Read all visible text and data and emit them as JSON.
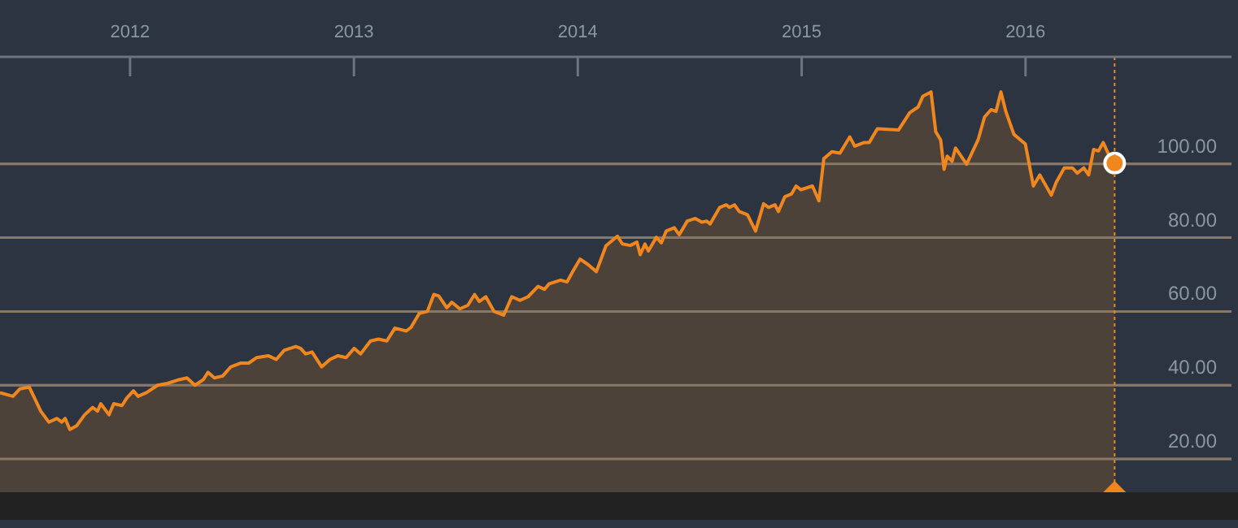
{
  "chart_data": {
    "type": "area",
    "x": [
      2011.419,
      2011.477,
      2011.507,
      2011.55,
      2011.601,
      2011.637,
      2011.673,
      2011.695,
      2011.71,
      2011.731,
      2011.761,
      2011.797,
      2011.833,
      2011.855,
      2011.869,
      2011.906,
      2011.927,
      2011.964,
      2011.985,
      2012.015,
      2012.036,
      2012.073,
      2012.123,
      2012.167,
      2012.218,
      2012.254,
      2012.29,
      2012.327,
      2012.348,
      2012.377,
      2012.414,
      2012.45,
      2012.493,
      2012.53,
      2012.566,
      2012.617,
      2012.653,
      2012.689,
      2012.74,
      2012.762,
      2012.784,
      2012.813,
      2012.856,
      2012.893,
      2012.929,
      2012.965,
      2013.001,
      2013.03,
      2013.074,
      2013.11,
      2013.147,
      2013.183,
      2013.234,
      2013.255,
      2013.292,
      2013.328,
      2013.357,
      2013.379,
      2013.415,
      2013.437,
      2013.473,
      2013.509,
      2013.539,
      2013.56,
      2013.589,
      2013.626,
      2013.669,
      2013.705,
      2013.742,
      2013.778,
      2013.822,
      2013.851,
      2013.872,
      2013.923,
      2013.952,
      2013.981,
      2014.01,
      2014.046,
      2014.083,
      2014.126,
      2014.177,
      2014.199,
      2014.235,
      2014.264,
      2014.279,
      2014.3,
      2014.315,
      2014.351,
      2014.373,
      2014.395,
      2014.431,
      2014.453,
      2014.489,
      2014.525,
      2014.554,
      2014.576,
      2014.591,
      2014.634,
      2014.663,
      2014.678,
      2014.7,
      2014.721,
      2014.758,
      2014.794,
      2014.83,
      2014.852,
      2014.881,
      2014.896,
      2014.925,
      2014.954,
      2014.975,
      2014.997,
      2015.048,
      2015.077,
      2015.099,
      2015.135,
      2015.171,
      2015.215,
      2015.237,
      2015.28,
      2015.302,
      2015.338,
      2015.433,
      2015.483,
      2015.52,
      2015.541,
      2015.578,
      2015.599,
      2015.621,
      2015.636,
      2015.65,
      2015.672,
      2015.687,
      2015.737,
      2015.788,
      2015.817,
      2015.846,
      2015.868,
      2015.89,
      2015.912,
      2015.948,
      2015.999,
      2016.035,
      2016.064,
      2016.115,
      2016.137,
      2016.173,
      2016.21,
      2016.231,
      2016.26,
      2016.282,
      2016.304,
      2016.326,
      2016.347,
      2016.376,
      2016.398
    ],
    "series": [
      {
        "color": "#f0861e",
        "values": [
          38,
          37,
          39,
          39.5,
          33,
          30,
          31,
          30,
          31,
          28,
          29,
          32,
          34,
          33,
          35,
          32,
          35,
          34.5,
          36.5,
          38.5,
          37,
          38,
          40,
          40.5,
          41.5,
          42,
          40,
          41.5,
          43.5,
          42,
          42.5,
          45,
          46,
          46,
          47.5,
          48,
          47,
          49.5,
          50.5,
          50,
          48.5,
          49,
          45,
          47,
          48,
          47.5,
          50,
          48.5,
          52,
          52.5,
          52,
          55.5,
          54.7,
          55.7,
          59.5,
          60,
          64.6,
          64.2,
          61,
          62.5,
          60.7,
          61.7,
          64.6,
          62.7,
          64,
          60,
          59,
          64,
          63,
          64,
          66.8,
          66,
          67.5,
          68.5,
          68,
          71.2,
          74.2,
          72.7,
          70.8,
          77.8,
          80.4,
          78.3,
          77.9,
          78.8,
          75.4,
          78.3,
          76.4,
          80.1,
          78.6,
          81.8,
          82.7,
          80.8,
          84.5,
          85.2,
          84.2,
          84.5,
          83.7,
          88.2,
          88.9,
          88.2,
          88.9,
          87.1,
          86.2,
          81.8,
          89.2,
          88.2,
          88.9,
          87.1,
          91.1,
          91.8,
          94,
          93,
          94,
          90,
          101.4,
          103.3,
          102.9,
          107.3,
          104.8,
          105.8,
          105.8,
          109.5,
          109.2,
          113.9,
          115.4,
          118.3,
          119.5,
          108.7,
          106.5,
          98.5,
          102.1,
          100.7,
          104.3,
          99.9,
          106.5,
          112.7,
          114.7,
          114.2,
          119.5,
          114.2,
          108,
          105.4,
          94,
          97,
          91.5,
          95,
          98.9,
          98.9,
          97.5,
          98.9,
          97,
          103.9,
          103.5,
          105.8,
          101.9,
          100.2
        ]
      },
      {
        "type": "scatter",
        "color": "#f0861e",
        "marker": "circle",
        "x": [
          2016.398
        ],
        "values": [
          100.2
        ]
      }
    ],
    "xlim": [
      2011.419,
      2016.92
    ],
    "xticks": [
      2012,
      2013,
      2014,
      2015,
      2016
    ],
    "ylim": [
      11,
      129
    ],
    "yticks": [
      {
        "value": 20,
        "label": "20.00"
      },
      {
        "value": 40,
        "label": "40.00"
      },
      {
        "value": 60,
        "label": "60.00"
      },
      {
        "value": 80,
        "label": "80.00"
      },
      {
        "value": 100,
        "label": "100.00"
      }
    ],
    "grid": "y",
    "marker": "none",
    "ref_lines": [
      {
        "axis": "x",
        "value": 2016.398,
        "color": "#f0861e",
        "line_style": "dotted"
      }
    ]
  }
}
